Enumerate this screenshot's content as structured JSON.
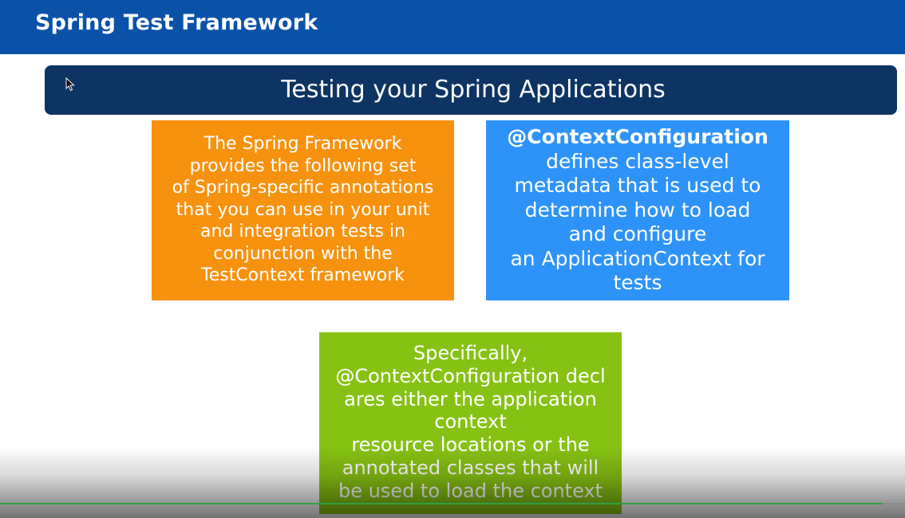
{
  "header": {
    "title": "Spring Test Framework"
  },
  "banner": {
    "subtitle": "Testing your Spring Applications"
  },
  "boxes": {
    "orange": {
      "lines": [
        "The Spring Framework",
        "provides the following set",
        "of Spring-specific annotations",
        "that you can use in your unit",
        "and integration tests in",
        "conjunction with the",
        "TestContext framework"
      ]
    },
    "blue": {
      "heading": "@ContextConfiguration",
      "lines": [
        "defines class-level",
        "metadata that is used to",
        "determine how to load",
        "and configure",
        "an ApplicationContext for",
        "tests"
      ]
    },
    "green": {
      "lines": [
        "Specifically,",
        "@ContextConfiguration decl",
        "ares either the application",
        "context",
        "resource locations or the",
        "annotated classes that will",
        "be used to load the context"
      ]
    }
  },
  "player": {
    "progress": 0.975
  },
  "colors": {
    "header_bg": "#0a52a8",
    "banner_bg": "#0d3463",
    "orange": "#f7920f",
    "blue": "#2e93f8",
    "green": "#86c213",
    "progress": "#2ea043"
  },
  "icons": {
    "cursor": "mouse-pointer-icon"
  }
}
